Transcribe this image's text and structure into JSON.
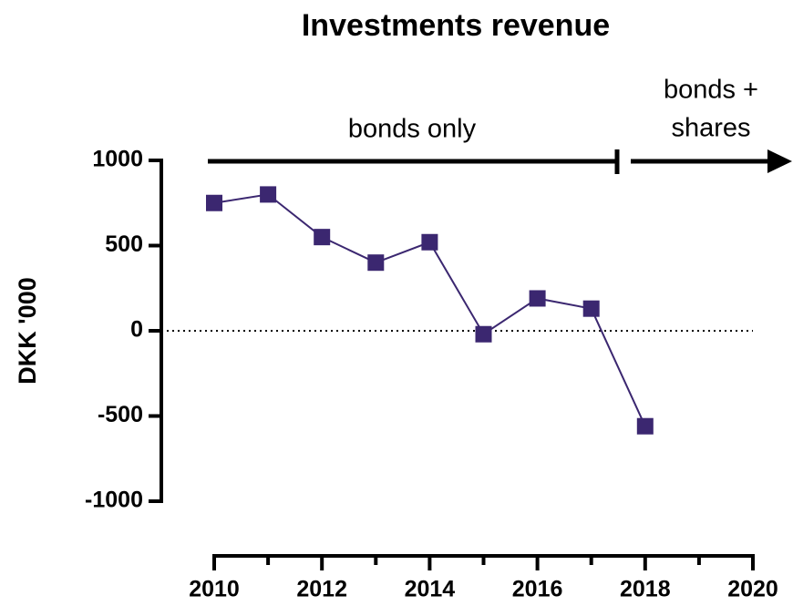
{
  "chart_data": {
    "type": "line",
    "title": "Investments revenue",
    "y_label": "DKK '000",
    "x": [
      2010,
      2011,
      2012,
      2013,
      2014,
      2015,
      2016,
      2017,
      2018
    ],
    "values": [
      750,
      800,
      550,
      400,
      520,
      -20,
      190,
      130,
      -560
    ],
    "color": "#3b2770",
    "xlim": [
      2010,
      2020
    ],
    "xticks": [
      2010,
      2012,
      2014,
      2016,
      2018,
      2020
    ],
    "ylim": [
      -1000,
      1000
    ],
    "yticks": [
      1000,
      500,
      0,
      -500,
      -1000
    ],
    "zero_line": true,
    "annotations": [
      "bonds only",
      "bonds +",
      "shares"
    ]
  }
}
